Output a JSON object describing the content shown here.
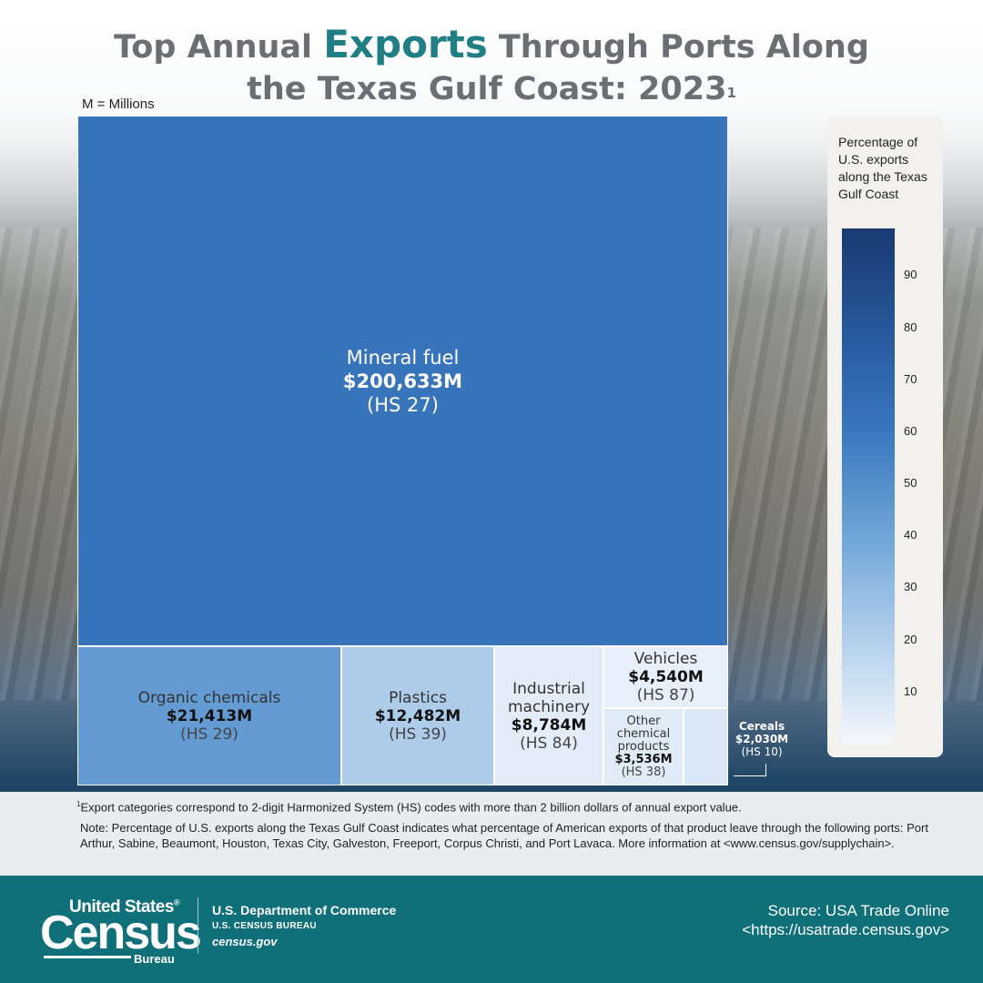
{
  "title": {
    "part1": "Top Annual ",
    "highlight": "Exports",
    "part2": " Through Ports Along",
    "line2": "the Texas Gulf Coast: 2023",
    "footnote_marker": "1"
  },
  "units_note": "M = Millions",
  "chart_data": {
    "type": "treemap",
    "units": "Millions of U.S. dollars",
    "items": [
      {
        "name": "Mineral fuel",
        "value": 200633,
        "value_label": "$200,633M",
        "hs": "(HS 27)",
        "pct_us_exports": 63
      },
      {
        "name": "Organic chemicals",
        "value": 21413,
        "value_label": "$21,413M",
        "hs": "(HS 29)",
        "pct_us_exports": 45
      },
      {
        "name": "Plastics",
        "value": 12482,
        "value_label": "$12,482M",
        "hs": "(HS 39)",
        "pct_us_exports": 22
      },
      {
        "name": "Industrial machinery",
        "value": 8784,
        "value_label": "$8,784M",
        "hs": "(HS 84)",
        "pct_us_exports": 5
      },
      {
        "name": "Vehicles",
        "value": 4540,
        "value_label": "$4,540M",
        "hs": "(HS 87)",
        "pct_us_exports": 4
      },
      {
        "name": "Other chemical products",
        "value": 3536,
        "value_label": "$3,536M",
        "hs": "(HS 38)",
        "pct_us_exports": 6
      },
      {
        "name": "Cereals",
        "value": 2030,
        "value_label": "$2,030M",
        "hs": "(HS 10)",
        "pct_us_exports": 8
      }
    ],
    "legend": {
      "title": "Percentage of U.S. exports along the Texas Gulf Coast",
      "ticks": [
        90,
        80,
        70,
        60,
        50,
        40,
        30,
        20,
        10
      ],
      "colors": [
        "#f3f7fd",
        "#b3d0ec",
        "#70a6d8",
        "#3a79bf",
        "#27589c",
        "#193a73"
      ],
      "placement": "right"
    }
  },
  "labels": {
    "mineral": {
      "name": "Mineral fuel",
      "value": "$200,633M",
      "hs": "(HS 27)"
    },
    "organic": {
      "name": "Organic chemicals",
      "value": "$21,413M",
      "hs": "(HS 29)"
    },
    "plastics": {
      "name": "Plastics",
      "value": "$12,482M",
      "hs": "(HS 39)"
    },
    "machinery": {
      "name1": "Industrial",
      "name2": "machinery",
      "value": "$8,784M",
      "hs": "(HS 84)"
    },
    "vehicles": {
      "name": "Vehicles",
      "value": "$4,540M",
      "hs": "(HS 87)"
    },
    "otherchem": {
      "name1": "Other",
      "name2": "chemical",
      "name3": "products",
      "value": "$3,536M",
      "hs": "(HS 38)"
    },
    "cereals": {
      "name": "Cereals",
      "value": "$2,030M",
      "hs": "(HS 10)"
    }
  },
  "legend_title": "Percentage of U.S. exports along the Texas Gulf Coast",
  "notes": {
    "footnote_marker": "1",
    "footnote": "Export categories correspond to 2-digit Harmonized System (HS) codes with more than 2 billion dollars of annual export value.",
    "note": "Note: Percentage of U.S. exports along the Texas Gulf Coast indicates what percentage of American exports of that product leave through the following ports: Port Arthur, Sabine, Beaumont, Houston, Texas City, Galveston, Freeport, Corpus Christi, and Port Lavaca. More information at <www.census.gov/supplychain>."
  },
  "footer": {
    "logo_top": "United States",
    "logo_reg": "®",
    "logo_main": "Census",
    "logo_bottom": "Bureau",
    "dept": "U.S. Department of Commerce",
    "bureau": "U.S. CENSUS BUREAU",
    "site": "census.gov",
    "source_line1": "Source: USA Trade Online",
    "source_line2": "<https://usatrade.census.gov>"
  }
}
